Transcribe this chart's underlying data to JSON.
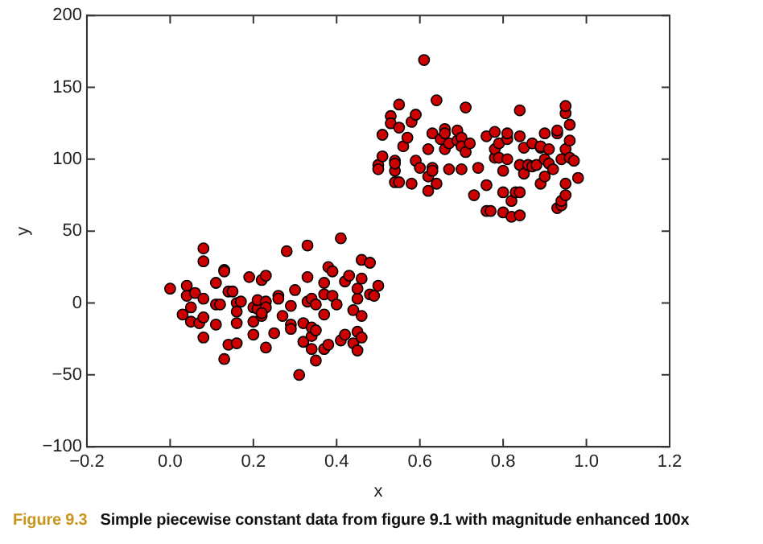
{
  "chart_data": {
    "type": "scatter",
    "xlabel": "x",
    "ylabel": "y",
    "xlim": [
      -0.2,
      1.2
    ],
    "xticks": [
      -0.2,
      {
        "value": 0,
        "label": "0.0"
      },
      0.2,
      0.4,
      0.6,
      0.8,
      {
        "value": 1,
        "label": "1.0"
      },
      1.2
    ],
    "ylim": [
      -100,
      200
    ],
    "yticks": [
      -100,
      -50,
      0,
      50,
      100,
      150,
      200
    ],
    "grid": false,
    "legend": false,
    "marker": "circle",
    "annotations": [
      "Figure 9.3",
      "Simple piecewise constant data from figure 9.1 with magnitude enhanced 100x"
    ],
    "series": [
      {
        "color": "#cc0000",
        "x": [
          0.0,
          0.03,
          0.04,
          0.04,
          0.05,
          0.05,
          0.06,
          0.07,
          0.08,
          0.08,
          0.08,
          0.08,
          0.08,
          0.11,
          0.11,
          0.11,
          0.12,
          0.13,
          0.13,
          0.13,
          0.14,
          0.14,
          0.15,
          0.16,
          0.16,
          0.16,
          0.16,
          0.17,
          0.19,
          0.2,
          0.2,
          0.2,
          0.21,
          0.21,
          0.22,
          0.22,
          0.23,
          0.23,
          0.23,
          0.23,
          0.22,
          0.25,
          0.26,
          0.26,
          0.27,
          0.28,
          0.29,
          0.29,
          0.29,
          0.3,
          0.31,
          0.32,
          0.32,
          0.33,
          0.33,
          0.33,
          0.34,
          0.34,
          0.34,
          0.34,
          0.35,
          0.35,
          0.35,
          0.37,
          0.37,
          0.37,
          0.37,
          0.38,
          0.38,
          0.39,
          0.39,
          0.4,
          0.41,
          0.41,
          0.42,
          0.42,
          0.43,
          0.44,
          0.44,
          0.45,
          0.45,
          0.45,
          0.45,
          0.46,
          0.46,
          0.46,
          0.46,
          0.48,
          0.48,
          0.5,
          0.49,
          0.61,
          0.5,
          0.51,
          0.5,
          0.51,
          0.53,
          0.53,
          0.54,
          0.54,
          0.54,
          0.55,
          0.55,
          0.54,
          0.55,
          0.56,
          0.57,
          0.58,
          0.58,
          0.59,
          0.59,
          0.6,
          0.62,
          0.62,
          0.62,
          0.63,
          0.63,
          0.63,
          0.64,
          0.64,
          0.65,
          0.66,
          0.66,
          0.66,
          0.67,
          0.67,
          0.69,
          0.69,
          0.7,
          0.7,
          0.7,
          0.71,
          0.71,
          0.72,
          0.73,
          0.74,
          0.76,
          0.76,
          0.76,
          0.77,
          0.78,
          0.78,
          0.78,
          0.79,
          0.79,
          0.8,
          0.8,
          0.8,
          0.81,
          0.81,
          0.81,
          0.82,
          0.82,
          0.83,
          0.84,
          0.84,
          0.84,
          0.84,
          0.84,
          0.85,
          0.85,
          0.86,
          0.87,
          0.87,
          0.88,
          0.89,
          0.89,
          0.89,
          0.9,
          0.9,
          0.9,
          0.91,
          0.91,
          0.92,
          0.93,
          0.93,
          0.93,
          0.94,
          0.94,
          0.94,
          0.95,
          0.95,
          0.95,
          0.95,
          0.95,
          0.96,
          0.96,
          0.96,
          0.97,
          0.98
        ],
        "values": [
          10,
          -8,
          12,
          5,
          -3,
          -13,
          7,
          -14,
          3,
          29,
          38,
          -10,
          -24,
          -15,
          -1,
          14,
          -1,
          23,
          22,
          -39,
          -29,
          8,
          8,
          0,
          -28,
          -6,
          -14,
          1,
          18,
          -3,
          -22,
          -13,
          -4,
          2,
          -9,
          16,
          19,
          1,
          -3,
          -31,
          -7,
          -21,
          5,
          3,
          -9,
          36,
          -15,
          -18,
          -2,
          9,
          -50,
          -27,
          -14,
          40,
          18,
          1,
          3,
          -23,
          -32,
          -17,
          -1,
          -40,
          -19,
          -32,
          -8,
          6,
          14,
          -29,
          25,
          22,
          5,
          -1,
          -26,
          45,
          -22,
          15,
          19,
          -5,
          -28,
          3,
          10,
          -20,
          -33,
          17,
          -24,
          30,
          -9,
          6,
          28,
          12,
          5,
          169,
          96,
          102,
          93,
          117,
          130,
          125,
          92,
          99,
          97,
          138,
          122,
          84,
          84,
          109,
          115,
          83,
          126,
          99,
          131,
          94,
          78,
          107,
          88,
          118,
          94,
          92,
          83,
          141,
          114,
          121,
          118,
          107,
          93,
          111,
          113,
          120,
          93,
          115,
          109,
          136,
          105,
          111,
          75,
          94,
          82,
          64,
          116,
          64,
          101,
          107,
          119,
          101,
          111,
          92,
          77,
          63,
          114,
          118,
          100,
          71,
          60,
          77,
          134,
          116,
          96,
          61,
          77,
          90,
          108,
          96,
          111,
          95,
          96,
          108,
          83,
          109,
          100,
          88,
          118,
          107,
          97,
          93,
          118,
          120,
          66,
          68,
          100,
          71,
          107,
          75,
          132,
          137,
          83,
          101,
          124,
          113,
          99,
          87
        ]
      }
    ]
  }
}
